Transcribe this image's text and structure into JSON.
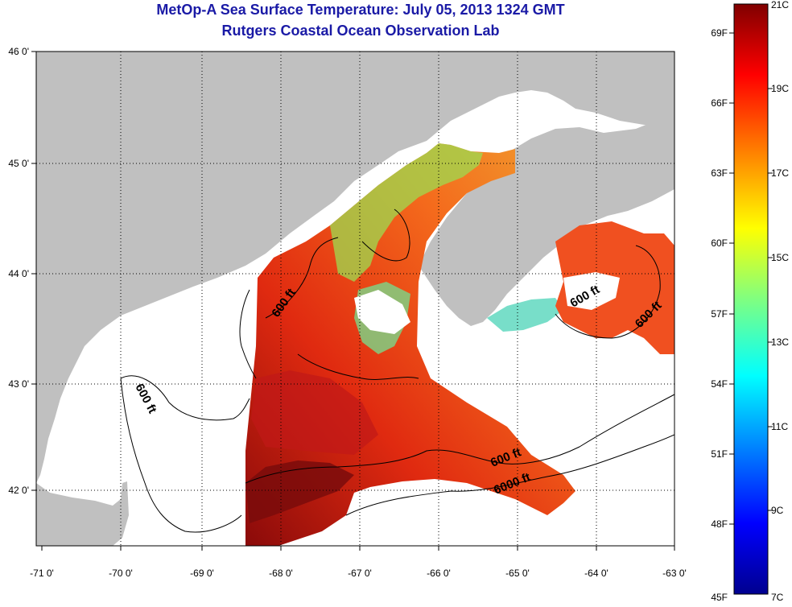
{
  "header": {
    "title_line1": "MetOp-A Sea Surface Temperature:  July 05, 2013 1324 GMT",
    "title_line2": "Rutgers Coastal Ocean Observation Lab"
  },
  "map": {
    "lon_ticks": [
      "-71 0'",
      "-70 0'",
      "-69 0'",
      "-68 0'",
      "-67 0'",
      "-66 0'",
      "-65 0'",
      "-64 0'",
      "-63 0'"
    ],
    "lat_ticks": [
      "46 0'",
      "45 0'",
      "44 0'",
      "43 0'",
      "42 0'"
    ],
    "contour_labels": [
      "600 ft",
      "600 ft",
      "600 ft",
      "600 ft",
      "600 ft",
      "6000 ft"
    ],
    "land_color": "#c0c0c0",
    "nodata_color": "#ffffff"
  },
  "colorbar": {
    "celsius_labels": [
      "21C",
      "19C",
      "17C",
      "15C",
      "13C",
      "11C",
      "9C",
      "7C"
    ],
    "fahrenheit_labels": [
      "69F",
      "66F",
      "63F",
      "60F",
      "57F",
      "54F",
      "51F",
      "48F",
      "45F"
    ],
    "range_c": [
      7,
      21
    ],
    "colors": [
      "#00008f",
      "#0000ff",
      "#0080ff",
      "#00ffff",
      "#80ff80",
      "#ffff00",
      "#ff8000",
      "#ff0000",
      "#800000"
    ]
  }
}
